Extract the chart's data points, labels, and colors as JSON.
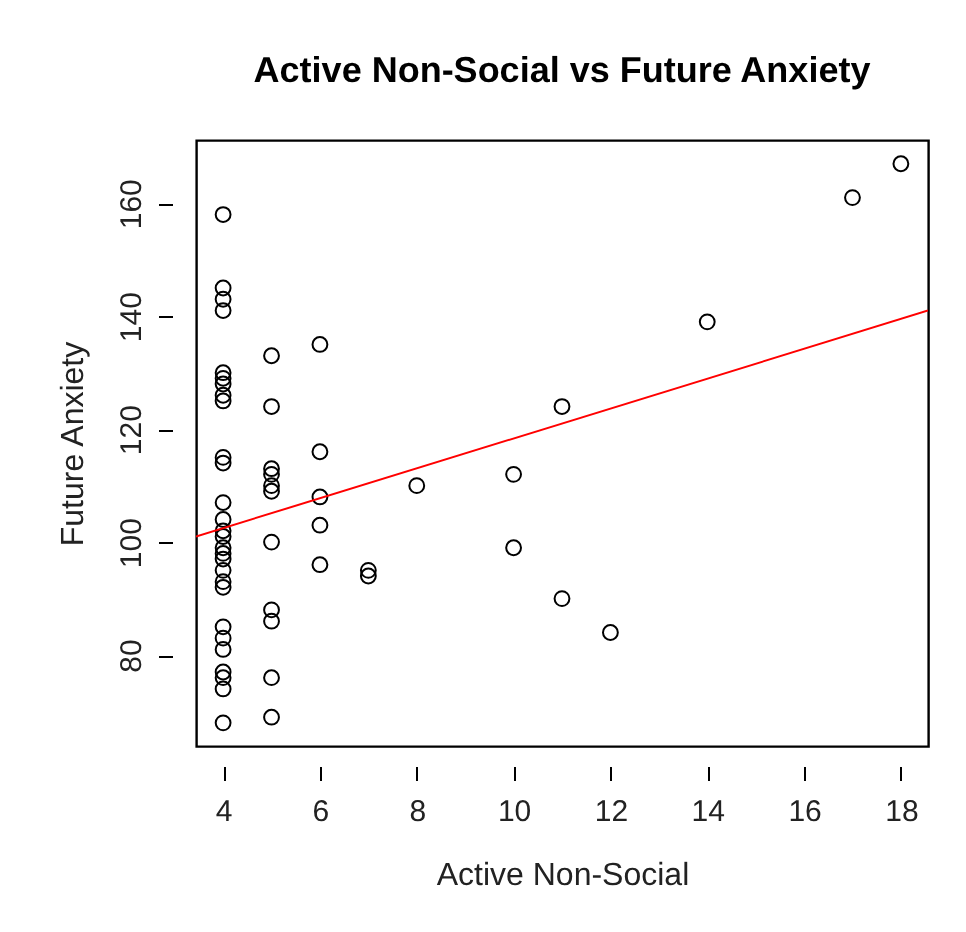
{
  "chart_data": {
    "type": "scatter",
    "title": "Active Non-Social vs Future Anxiety",
    "xlabel": "Active Non-Social",
    "ylabel": "Future Anxiety",
    "xlim": [
      3.44,
      18.56
    ],
    "ylim": [
      63.9,
      171.2
    ],
    "xticks": [
      4,
      6,
      8,
      10,
      12,
      14,
      16,
      18
    ],
    "yticks": [
      80,
      100,
      120,
      140,
      160
    ],
    "grid": false,
    "marker": "circle",
    "series": [
      {
        "color": "#000000",
        "x": [
          4,
          4,
          4,
          4,
          4,
          4,
          4,
          4,
          4,
          4,
          4,
          4,
          4,
          4,
          4,
          4,
          4,
          4,
          4,
          4,
          4,
          4,
          4,
          4,
          4,
          4,
          4,
          4,
          5,
          5,
          5,
          5,
          5,
          5,
          5,
          5,
          5,
          5,
          5,
          6,
          6,
          6,
          6,
          6,
          7,
          7,
          8,
          10,
          10,
          11,
          11,
          12,
          14,
          17,
          18
        ],
        "values": [
          158,
          145,
          143,
          141,
          130,
          129,
          128,
          126,
          125,
          115,
          114,
          107,
          104,
          102,
          101,
          99,
          98,
          97,
          95,
          93,
          92,
          85,
          83,
          81,
          77,
          76,
          74,
          68,
          133,
          124,
          113,
          112,
          110,
          109,
          100,
          88,
          86,
          76,
          69,
          135,
          116,
          108,
          103,
          96,
          95,
          94,
          110,
          112,
          99,
          124,
          90,
          84,
          139,
          161,
          167
        ]
      },
      {
        "type": "line",
        "marker": "none",
        "color": "#ff0000",
        "x": [
          3.44,
          18.56
        ],
        "values": [
          101,
          141
        ]
      }
    ]
  }
}
